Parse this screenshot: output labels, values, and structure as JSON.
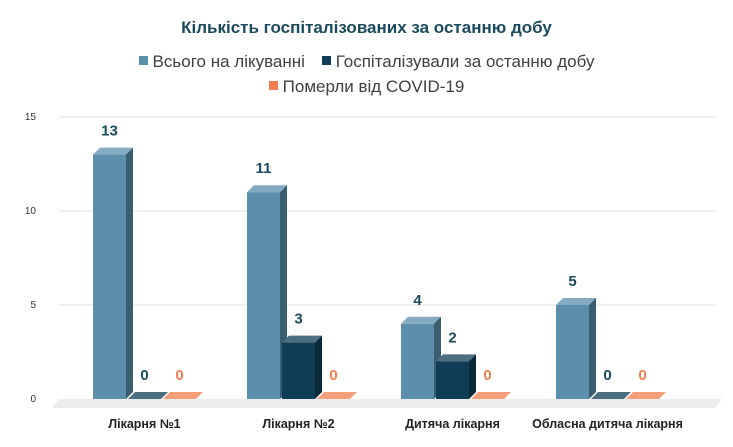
{
  "chart_data": {
    "type": "bar",
    "title": "Кількість госпіталізованих за останню добу",
    "categories": [
      "Лікарня №1",
      "Лікарня №2",
      "Дитяча лікарня",
      "Обласна дитяча лікарня"
    ],
    "series": [
      {
        "name": "Всього на лікуванні",
        "values": [
          13,
          11,
          4,
          5
        ],
        "color": "#5b8fac"
      },
      {
        "name": "Госпіталізували за останню добу",
        "values": [
          0,
          3,
          2,
          0
        ],
        "color": "#0f3d56"
      },
      {
        "name": "Померли від COVID-19",
        "values": [
          0,
          0,
          0,
          0
        ],
        "color": "#f27d4e"
      }
    ],
    "yticks": [
      0,
      5,
      10,
      15
    ],
    "ylim": [
      0,
      15
    ],
    "xlabel": "",
    "ylabel": "",
    "legend_position": "top",
    "grid": true
  }
}
